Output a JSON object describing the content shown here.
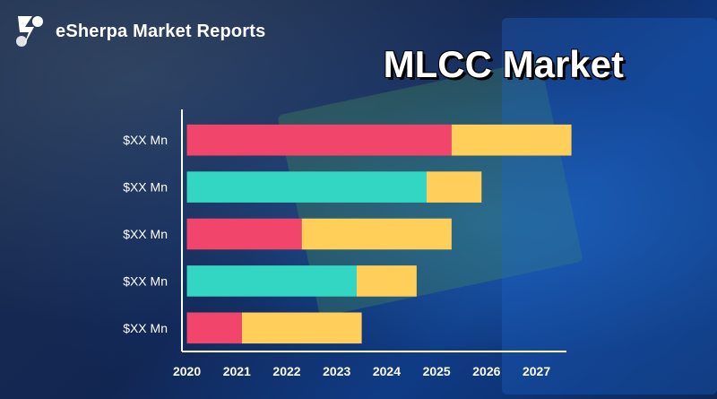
{
  "brand": {
    "name": "eSherpa Market Reports"
  },
  "chart_data": {
    "type": "bar",
    "orientation": "horizontal",
    "stacked": true,
    "title": "MLCC Market",
    "x_tick_labels": [
      "2020",
      "2021",
      "2022",
      "2023",
      "2024",
      "2025",
      "2026",
      "2027"
    ],
    "xlim": [
      2019.9,
      2027.6
    ],
    "categories": [
      "$XX Mn",
      "$XX Mn",
      "$XX Mn",
      "$XX Mn",
      "$XX Mn"
    ],
    "bars": [
      {
        "start": 2020,
        "split": 2025.3,
        "end": 2027.7,
        "primary_color": "#f2456b"
      },
      {
        "start": 2020,
        "split": 2024.8,
        "end": 2025.9,
        "primary_color": "#33d6c2"
      },
      {
        "start": 2020,
        "split": 2022.3,
        "end": 2025.3,
        "primary_color": "#f2456b"
      },
      {
        "start": 2020,
        "split": 2023.4,
        "end": 2024.6,
        "primary_color": "#33d6c2"
      },
      {
        "start": 2020,
        "split": 2021.1,
        "end": 2023.5,
        "primary_color": "#f2456b"
      }
    ],
    "secondary_color": "#ffcf5a",
    "grid": false,
    "colors": {
      "axis": "#ffffff",
      "tick_text": "#ffffff"
    }
  }
}
